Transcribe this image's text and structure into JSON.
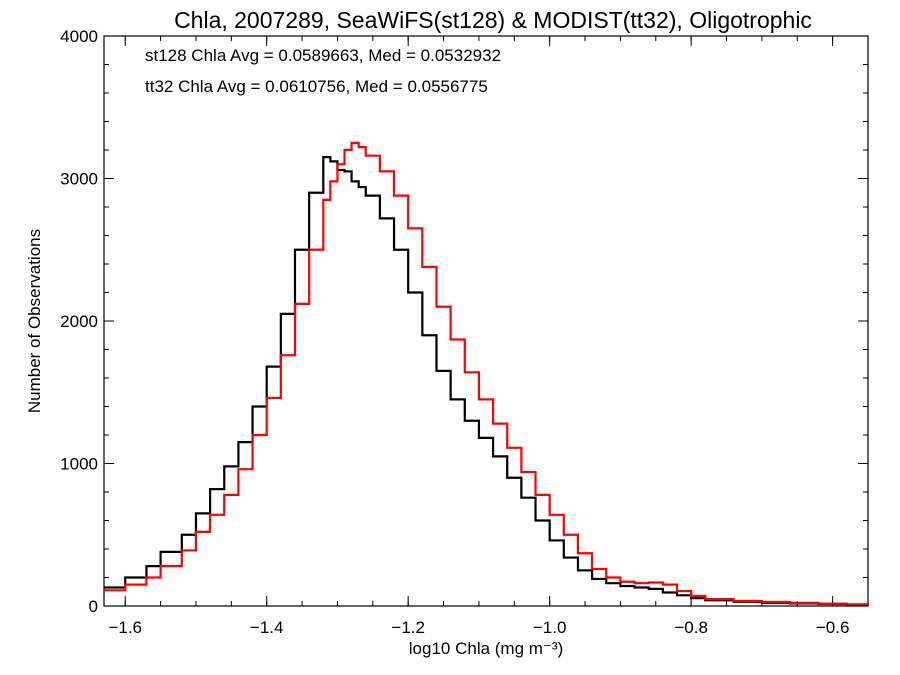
{
  "chart_data": {
    "type": "line",
    "title": "Chla, 2007289, SeaWiFS(st128) & MODIST(tt32), Oligotrophic",
    "xlabel": "log10 Chla (mg m⁻³)",
    "ylabel": "Number of Observations",
    "xlim": [
      -1.63,
      -0.55
    ],
    "ylim": [
      0,
      4000
    ],
    "x_ticks": [
      -1.6,
      -1.4,
      -1.2,
      -1.0,
      -0.8,
      -0.6
    ],
    "x_tick_labels": [
      "−1.6",
      "−1.4",
      "−1.2",
      "−1.0",
      "−0.8",
      "−0.6"
    ],
    "y_ticks": [
      0,
      1000,
      2000,
      3000,
      4000
    ],
    "y_tick_labels": [
      "0",
      "1000",
      "2000",
      "3000",
      "4000"
    ],
    "grid": false,
    "annotations": [
      {
        "text": "st128 Chla Avg = 0.0589663, Med = 0.0532932",
        "color": "#000000"
      },
      {
        "text": "tt32 Chla Avg = 0.0610756, Med = 0.0556775",
        "color": "#ff0000"
      }
    ],
    "series": [
      {
        "color": "#000000",
        "x": [
          -1.63,
          -1.6,
          -1.57,
          -1.55,
          -1.52,
          -1.5,
          -1.48,
          -1.46,
          -1.44,
          -1.42,
          -1.4,
          -1.38,
          -1.36,
          -1.34,
          -1.32,
          -1.31,
          -1.3,
          -1.29,
          -1.28,
          -1.27,
          -1.26,
          -1.24,
          -1.22,
          -1.2,
          -1.18,
          -1.16,
          -1.14,
          -1.12,
          -1.1,
          -1.08,
          -1.06,
          -1.04,
          -1.02,
          -1.0,
          -0.98,
          -0.96,
          -0.94,
          -0.92,
          -0.9,
          -0.88,
          -0.86,
          -0.84,
          -0.82,
          -0.8,
          -0.78,
          -0.74,
          -0.7,
          -0.66,
          -0.62,
          -0.58,
          -0.55
        ],
        "y": [
          130,
          200,
          280,
          380,
          500,
          650,
          820,
          980,
          1150,
          1400,
          1680,
          2050,
          2500,
          2900,
          3150,
          3120,
          3060,
          3050,
          2980,
          2940,
          2880,
          2720,
          2500,
          2200,
          1900,
          1650,
          1450,
          1300,
          1180,
          1050,
          900,
          760,
          600,
          460,
          340,
          250,
          190,
          160,
          140,
          130,
          120,
          95,
          75,
          55,
          40,
          30,
          22,
          18,
          14,
          10,
          8
        ]
      },
      {
        "color": "#ff0000",
        "x": [
          -1.63,
          -1.6,
          -1.57,
          -1.55,
          -1.52,
          -1.5,
          -1.48,
          -1.46,
          -1.44,
          -1.42,
          -1.4,
          -1.38,
          -1.36,
          -1.34,
          -1.32,
          -1.31,
          -1.3,
          -1.29,
          -1.28,
          -1.27,
          -1.26,
          -1.24,
          -1.22,
          -1.2,
          -1.18,
          -1.16,
          -1.14,
          -1.12,
          -1.1,
          -1.08,
          -1.06,
          -1.04,
          -1.02,
          -1.0,
          -0.98,
          -0.96,
          -0.94,
          -0.92,
          -0.9,
          -0.88,
          -0.86,
          -0.84,
          -0.82,
          -0.8,
          -0.78,
          -0.74,
          -0.7,
          -0.66,
          -0.62,
          -0.58,
          -0.55
        ],
        "y": [
          110,
          150,
          200,
          280,
          390,
          520,
          640,
          780,
          960,
          1200,
          1460,
          1760,
          2120,
          2500,
          2850,
          2980,
          3100,
          3200,
          3250,
          3220,
          3160,
          3050,
          2880,
          2650,
          2380,
          2100,
          1870,
          1640,
          1450,
          1280,
          1110,
          940,
          780,
          640,
          500,
          370,
          260,
          200,
          170,
          160,
          165,
          150,
          105,
          70,
          48,
          35,
          28,
          22,
          16,
          12,
          10
        ]
      }
    ]
  }
}
